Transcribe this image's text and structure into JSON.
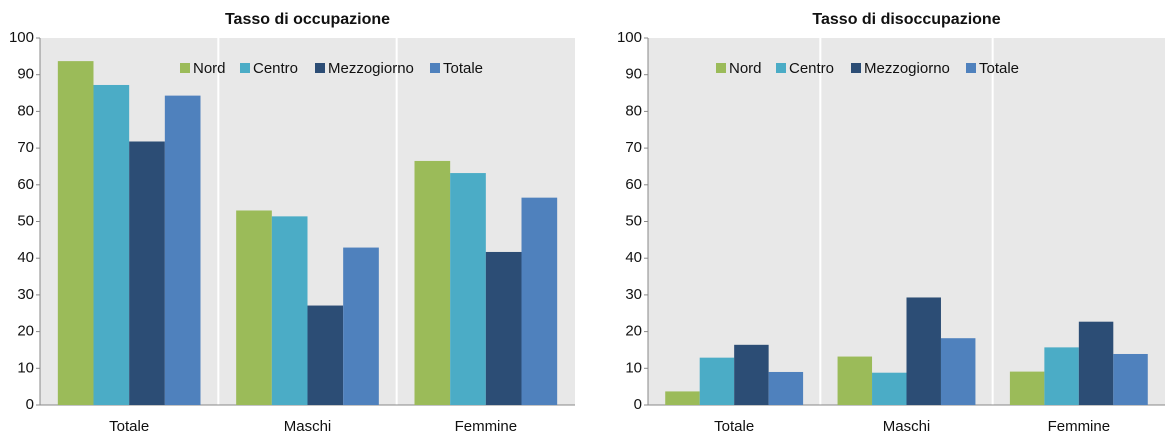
{
  "chart_data": [
    {
      "type": "bar",
      "title": "Tasso di occupazione",
      "categories": [
        "Totale",
        "Maschi",
        "Femmine"
      ],
      "series": [
        {
          "name": "Nord",
          "color": "#9bbb59",
          "values": [
            93.7,
            53.0,
            66.5
          ]
        },
        {
          "name": "Centro",
          "color": "#4bacc6",
          "values": [
            87.2,
            51.4,
            63.2
          ]
        },
        {
          "name": "Mezzogiorno",
          "color": "#2c4d75",
          "values": [
            71.8,
            27.1,
            41.7
          ]
        },
        {
          "name": "Totale",
          "color": "#4f81bd",
          "values": [
            84.3,
            42.9,
            56.5
          ]
        }
      ],
      "ylim": [
        0,
        100
      ],
      "yticks": [
        0,
        10,
        20,
        30,
        40,
        50,
        60,
        70,
        80,
        90,
        100
      ],
      "legend": "top"
    },
    {
      "type": "bar",
      "title": "Tasso di disoccupazione",
      "categories": [
        "Totale",
        "Maschi",
        "Femmine"
      ],
      "series": [
        {
          "name": "Nord",
          "color": "#9bbb59",
          "values": [
            3.7,
            13.2,
            9.1
          ]
        },
        {
          "name": "Centro",
          "color": "#4bacc6",
          "values": [
            12.9,
            8.8,
            15.7
          ]
        },
        {
          "name": "Mezzogiorno",
          "color": "#2c4d75",
          "values": [
            16.4,
            29.3,
            22.7
          ]
        },
        {
          "name": "Totale",
          "color": "#4f81bd",
          "values": [
            9.0,
            18.2,
            13.9
          ]
        }
      ],
      "ylim": [
        0,
        100
      ],
      "yticks": [
        0,
        10,
        20,
        30,
        40,
        50,
        60,
        70,
        80,
        90,
        100
      ],
      "legend": "top"
    }
  ]
}
